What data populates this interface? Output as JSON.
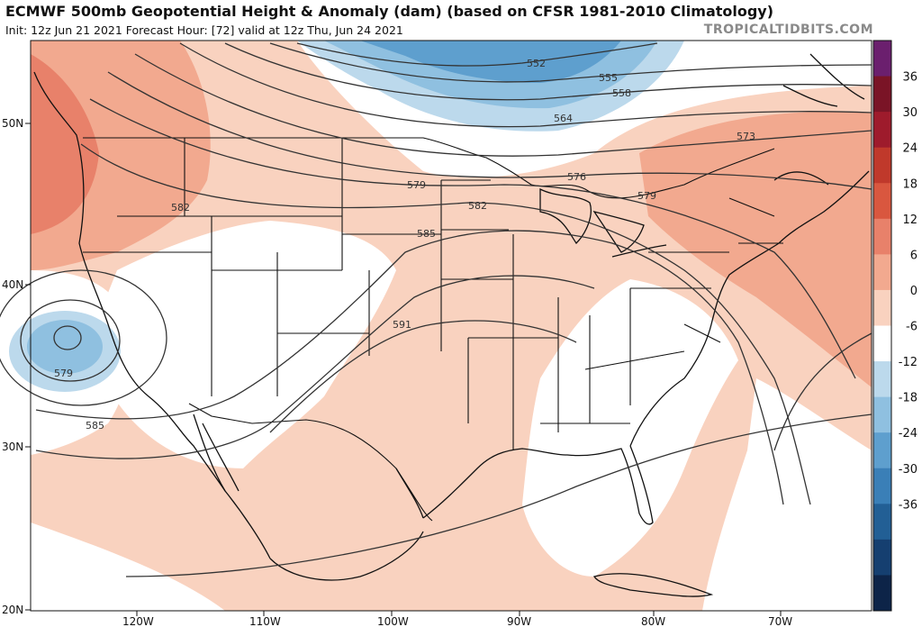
{
  "header": {
    "title": "ECMWF 500mb Geopotential Height & Anomaly (dam) (based on CFSR 1981-2010 Climatology)",
    "subtitle": "Init: 12z Jun 21 2021   Forecast Hour: [72]   valid at 12z Thu, Jun 24 2021",
    "brand": "TROPICALTIDBITS.COM"
  },
  "axes": {
    "lat_labels": [
      "50N",
      "40N",
      "30N",
      "20N"
    ],
    "lon_labels": [
      "120W",
      "110W",
      "100W",
      "90W",
      "80W",
      "70W"
    ]
  },
  "height_contours": {
    "labels": [
      "552",
      "555",
      "558",
      "564",
      "573",
      "576",
      "579",
      "579",
      "582",
      "582",
      "585",
      "585",
      "591",
      "579"
    ]
  },
  "colorbar": {
    "ticks": [
      "36",
      "30",
      "24",
      "18",
      "12",
      "6",
      "0",
      "-6",
      "-12",
      "-18",
      "-24",
      "-30",
      "-36"
    ],
    "colors": [
      "#6b1f6e",
      "#7a1426",
      "#9e1b2c",
      "#c0392b",
      "#d9573f",
      "#e8816a",
      "#f2a98f",
      "#f9d2bf",
      "#ffffff",
      "#bcd9ec",
      "#8fc0e0",
      "#5e9fce",
      "#3a7fb7",
      "#225f95",
      "#153f70",
      "#0d2448"
    ]
  },
  "colors": {
    "anom_pos_light": "#f9d2bf",
    "anom_pos_mid": "#f2a98f",
    "anom_pos_strong": "#e8816a",
    "anom_neg_light": "#bcd9ec",
    "anom_neg_mid": "#8fc0e0",
    "anom_neg_strong": "#3a7fb7"
  }
}
